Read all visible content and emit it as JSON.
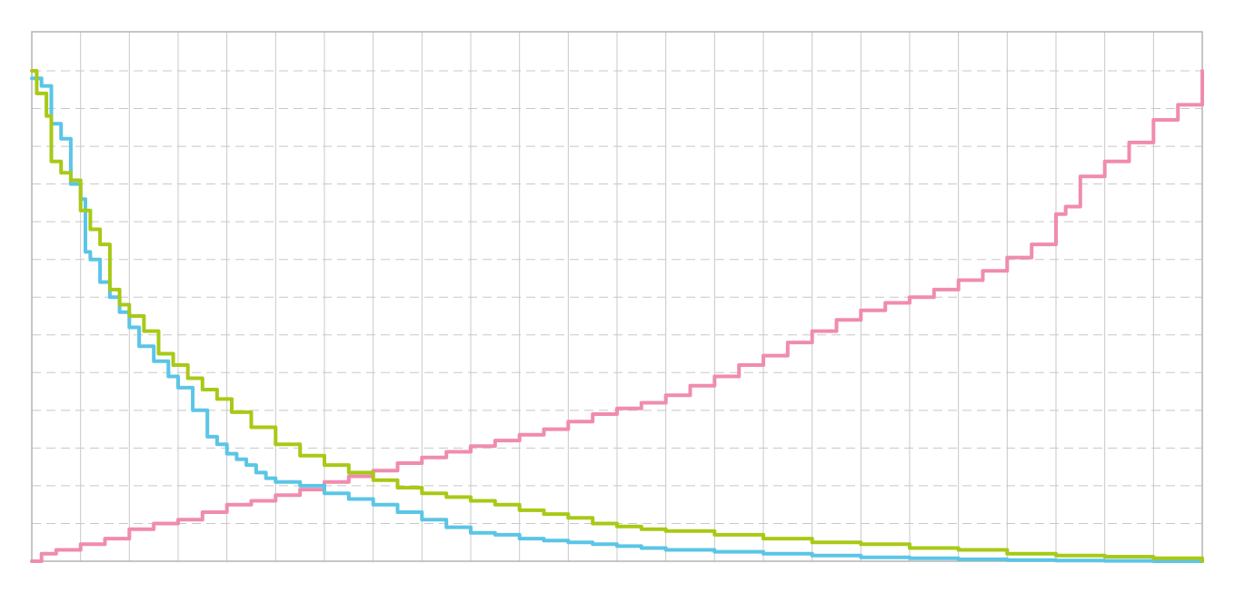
{
  "chart_data": {
    "type": "line",
    "title": "",
    "xlabel": "",
    "ylabel": "",
    "xlim": [
      0,
      24
    ],
    "ylim": [
      0,
      13
    ],
    "x_grid_step": 1,
    "y_grid_step": 1,
    "grid": true,
    "colors": {
      "series_1": "#f08cae",
      "series_2": "#5bc5e6",
      "series_3": "#a8c916",
      "grid_vertical": "#c8c8c8",
      "grid_horizontal": "#c8c8c8",
      "axis": "#b4b4b4"
    },
    "series": [
      {
        "x": [
          0,
          0.2,
          0.5,
          1,
          1.5,
          2,
          2.5,
          3,
          3.5,
          4,
          4.5,
          5,
          5.5,
          6,
          6.5,
          7,
          7.5,
          8,
          8.5,
          9,
          9.5,
          10,
          10.5,
          11,
          11.5,
          12,
          12.5,
          13,
          13.5,
          14,
          14.5,
          15,
          15.5,
          16,
          16.5,
          17,
          17.5,
          18,
          18.5,
          19,
          19.5,
          20,
          20.5,
          21,
          21.2,
          21.5,
          22,
          22.5,
          23,
          23.5,
          24
        ],
        "values": [
          0,
          0.2,
          0.3,
          0.45,
          0.6,
          0.85,
          1,
          1.1,
          1.3,
          1.5,
          1.6,
          1.75,
          1.9,
          2.1,
          2.25,
          2.4,
          2.6,
          2.75,
          2.9,
          3.05,
          3.2,
          3.35,
          3.5,
          3.7,
          3.9,
          4.05,
          4.2,
          4.4,
          4.65,
          4.9,
          5.2,
          5.45,
          5.8,
          6.1,
          6.4,
          6.65,
          6.85,
          7,
          7.2,
          7.45,
          7.7,
          8.05,
          8.4,
          9.2,
          9.4,
          10.2,
          10.6,
          11.1,
          11.7,
          12.1,
          13
        ]
      },
      {
        "x": [
          0,
          0.2,
          0.4,
          0.6,
          0.8,
          1,
          1.1,
          1.2,
          1.4,
          1.6,
          1.8,
          2,
          2.2,
          2.5,
          2.8,
          3,
          3.3,
          3.6,
          3.8,
          4,
          4.2,
          4.4,
          4.6,
          4.8,
          5,
          5.5,
          6,
          6.5,
          7,
          7.5,
          8,
          8.5,
          9,
          9.5,
          10,
          10.5,
          11,
          11.5,
          12,
          12.5,
          13,
          14,
          15,
          16,
          17,
          18,
          19,
          20,
          21,
          22,
          23,
          24
        ],
        "values": [
          12.8,
          12.6,
          11.6,
          11.2,
          10,
          9.6,
          8.2,
          8,
          7.4,
          7,
          6.6,
          6.2,
          5.7,
          5.3,
          4.9,
          4.6,
          4,
          3.3,
          3.1,
          2.85,
          2.7,
          2.55,
          2.35,
          2.2,
          2.1,
          2,
          1.8,
          1.65,
          1.5,
          1.3,
          1.1,
          0.9,
          0.75,
          0.7,
          0.6,
          0.55,
          0.5,
          0.45,
          0.4,
          0.35,
          0.3,
          0.25,
          0.2,
          0.15,
          0.1,
          0.08,
          0.05,
          0.03,
          0.02,
          0.01,
          0,
          0
        ]
      },
      {
        "x": [
          0,
          0.1,
          0.3,
          0.4,
          0.6,
          0.8,
          1,
          1.2,
          1.4,
          1.6,
          1.8,
          2,
          2.3,
          2.6,
          2.9,
          3.2,
          3.5,
          3.8,
          4.1,
          4.5,
          5,
          5.5,
          6,
          6.5,
          7,
          7.5,
          8,
          8.5,
          9,
          9.5,
          10,
          10.5,
          11,
          11.5,
          12,
          12.5,
          13,
          14,
          15,
          16,
          17,
          18,
          19,
          20,
          21,
          22,
          23,
          24
        ],
        "values": [
          13,
          12.4,
          11.8,
          10.6,
          10.3,
          10.1,
          9.3,
          8.8,
          8.4,
          7.2,
          6.8,
          6.5,
          6.1,
          5.5,
          5.2,
          4.85,
          4.55,
          4.3,
          3.95,
          3.55,
          3.1,
          2.8,
          2.55,
          2.35,
          2.15,
          1.95,
          1.8,
          1.7,
          1.6,
          1.5,
          1.35,
          1.25,
          1.15,
          1,
          0.92,
          0.85,
          0.8,
          0.7,
          0.6,
          0.5,
          0.45,
          0.35,
          0.3,
          0.2,
          0.15,
          0.12,
          0.08,
          0
        ]
      }
    ]
  }
}
